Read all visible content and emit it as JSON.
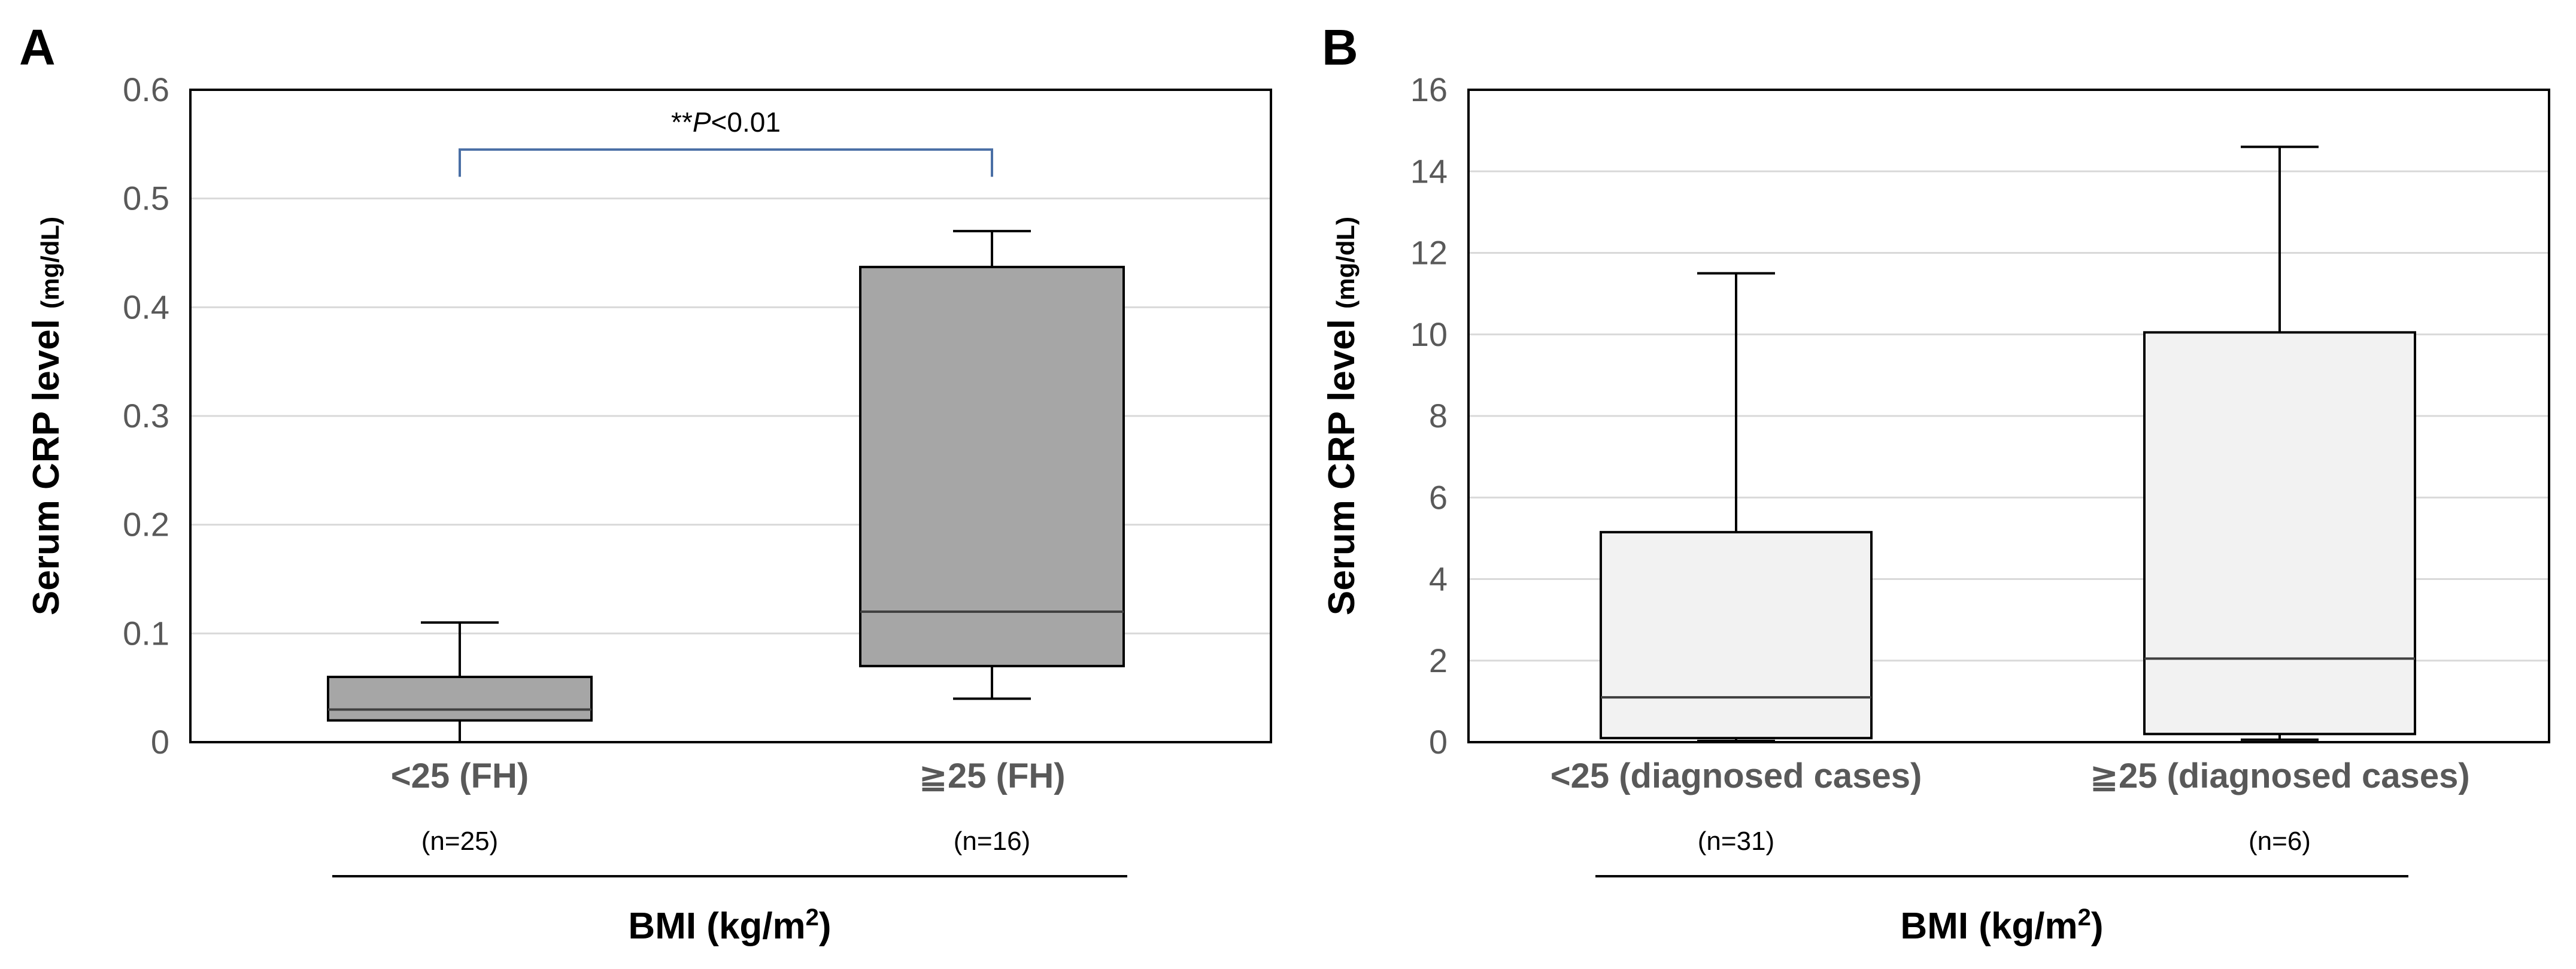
{
  "colors": {
    "box_fill_a": "#a6a6a6",
    "box_fill_b": "#f2f2f2",
    "box_stroke": "#000000",
    "grid": "#d9d9d9",
    "axis_text": "#595959",
    "bracket": "#4a6fa5"
  },
  "chart_data": [
    {
      "panel": "A",
      "type": "box",
      "ylabel_main": "Serum CRP level",
      "ylabel_unit": "(mg/dL)",
      "ylim": [
        0,
        0.6
      ],
      "ytick_values": [
        0,
        0.1,
        0.2,
        0.3,
        0.4,
        0.5,
        0.6
      ],
      "ytick_labels": [
        "0",
        "0.1",
        "0.2",
        "0.3",
        "0.4",
        "0.5",
        "0.6"
      ],
      "grid": true,
      "categories": [
        "<25 (FH)",
        "≧25 (FH)"
      ],
      "n_labels": [
        "(n=25)",
        "(n=16)"
      ],
      "xlabel_main": "BMI (kg/m",
      "xlabel_sup": "2",
      "xlabel_end": ")",
      "boxes": [
        {
          "whisker_low": 0.0,
          "q1": 0.02,
          "median": 0.03,
          "q3": 0.06,
          "whisker_high": 0.11
        },
        {
          "whisker_low": 0.04,
          "q1": 0.07,
          "median": 0.12,
          "q3": 0.437,
          "whisker_high": 0.47
        }
      ],
      "annotation": {
        "stars": "**",
        "p": "P",
        "text": "<0.01",
        "y": 0.545,
        "tick_bottom": 0.52,
        "from_index": 0,
        "to_index": 1
      }
    },
    {
      "panel": "B",
      "type": "box",
      "ylabel_main": "Serum CRP level",
      "ylabel_unit": "(mg/dL)",
      "ylim": [
        0,
        16
      ],
      "ytick_values": [
        0,
        2,
        4,
        6,
        8,
        10,
        12,
        14,
        16
      ],
      "ytick_labels": [
        "0",
        "2",
        "4",
        "6",
        "8",
        "10",
        "12",
        "14",
        "16"
      ],
      "grid": true,
      "categories": [
        "<25 (diagnosed cases)",
        "≧25 (diagnosed cases)"
      ],
      "n_labels": [
        "(n=31)",
        "(n=6)"
      ],
      "xlabel_main": "BMI (kg/m",
      "xlabel_sup": "2",
      "xlabel_end": ")",
      "boxes": [
        {
          "whisker_low": 0.03,
          "q1": 0.1,
          "median": 1.1,
          "q3": 5.15,
          "whisker_high": 11.5
        },
        {
          "whisker_low": 0.06,
          "q1": 0.2,
          "median": 2.05,
          "q3": 10.05,
          "whisker_high": 14.6
        }
      ]
    }
  ]
}
